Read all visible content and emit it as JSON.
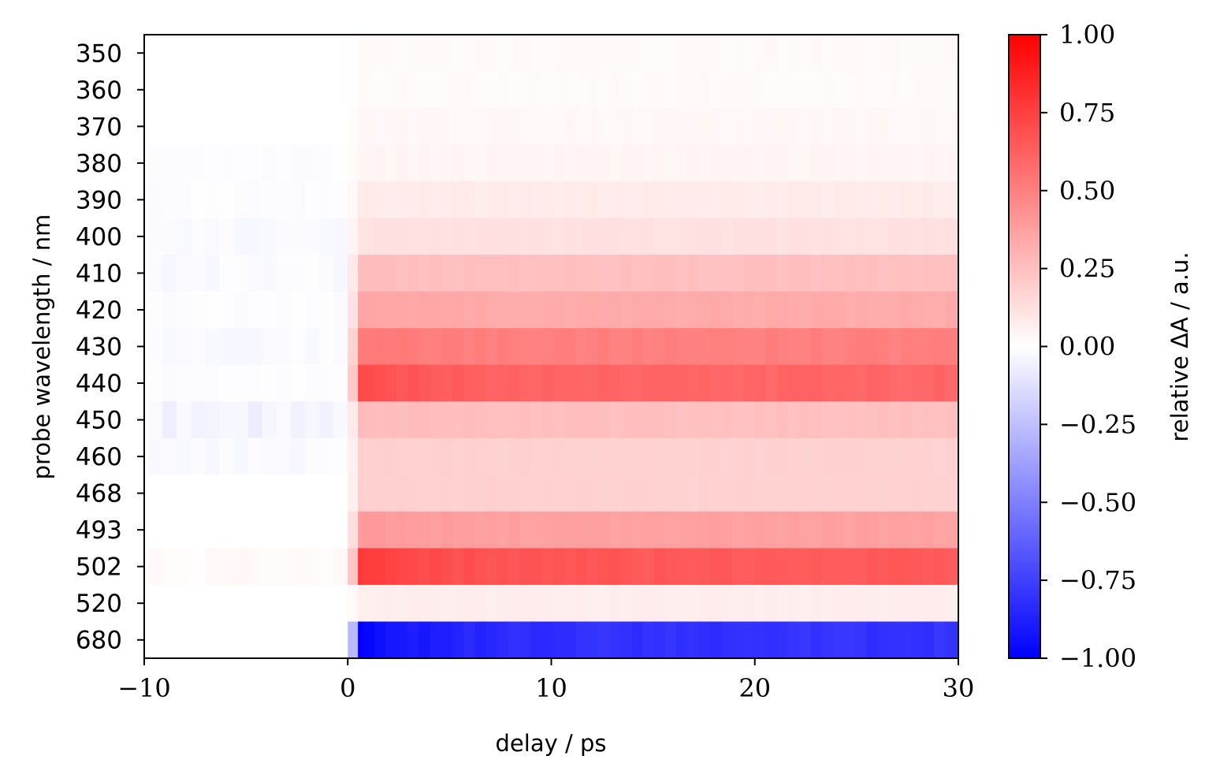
{
  "chart_data": {
    "type": "heatmap",
    "xlabel": "delay / ps",
    "ylabel": "probe wavelength / nm",
    "colorbar_label": "relative ΔA / a.u.",
    "xlim": [
      -10,
      30
    ],
    "x_ticks": [
      {
        "value": -10,
        "label": "−10"
      },
      {
        "value": 0,
        "label": "0"
      },
      {
        "value": 10,
        "label": "10"
      },
      {
        "value": 20,
        "label": "20"
      },
      {
        "value": 30,
        "label": "30"
      }
    ],
    "colorbar_range": [
      -1.0,
      1.0
    ],
    "colorbar_ticks": [
      {
        "value": 1.0,
        "label": "1.00"
      },
      {
        "value": 0.75,
        "label": "0.75"
      },
      {
        "value": 0.5,
        "label": "0.50"
      },
      {
        "value": 0.25,
        "label": "0.25"
      },
      {
        "value": 0.0,
        "label": "0.00"
      },
      {
        "value": -0.25,
        "label": "−0.25"
      },
      {
        "value": -0.5,
        "label": "−0.50"
      },
      {
        "value": -0.75,
        "label": "−0.75"
      },
      {
        "value": -1.0,
        "label": "−1.00"
      }
    ],
    "colormap": {
      "low": "#0000ff",
      "mid": "#ffffff",
      "high": "#ff0000"
    },
    "series": [
      {
        "wavelength": "350",
        "pre": 0.0,
        "plateau": 0.02,
        "peak": 0.02
      },
      {
        "wavelength": "360",
        "pre": 0.0,
        "plateau": 0.02,
        "peak": 0.02
      },
      {
        "wavelength": "370",
        "pre": 0.0,
        "plateau": 0.03,
        "peak": 0.03
      },
      {
        "wavelength": "380",
        "pre": -0.01,
        "plateau": 0.04,
        "peak": 0.04
      },
      {
        "wavelength": "390",
        "pre": -0.01,
        "plateau": 0.08,
        "peak": 0.08
      },
      {
        "wavelength": "400",
        "pre": -0.02,
        "plateau": 0.12,
        "peak": 0.12
      },
      {
        "wavelength": "410",
        "pre": -0.02,
        "plateau": 0.25,
        "peak": 0.26
      },
      {
        "wavelength": "420",
        "pre": -0.01,
        "plateau": 0.33,
        "peak": 0.36
      },
      {
        "wavelength": "430",
        "pre": -0.02,
        "plateau": 0.5,
        "peak": 0.52
      },
      {
        "wavelength": "440",
        "pre": -0.01,
        "plateau": 0.6,
        "peak": 0.72
      },
      {
        "wavelength": "450",
        "pre": -0.05,
        "plateau": 0.25,
        "peak": 0.27
      },
      {
        "wavelength": "460",
        "pre": -0.02,
        "plateau": 0.18,
        "peak": 0.19
      },
      {
        "wavelength": "468",
        "pre": 0.0,
        "plateau": 0.18,
        "peak": 0.19
      },
      {
        "wavelength": "493",
        "pre": 0.0,
        "plateau": 0.37,
        "peak": 0.4
      },
      {
        "wavelength": "502",
        "pre": 0.02,
        "plateau": 0.65,
        "peak": 0.78
      },
      {
        "wavelength": "520",
        "pre": 0.0,
        "plateau": 0.07,
        "peak": 0.07
      },
      {
        "wavelength": "680",
        "pre": 0.0,
        "plateau": -0.8,
        "peak": -1.0
      }
    ]
  }
}
